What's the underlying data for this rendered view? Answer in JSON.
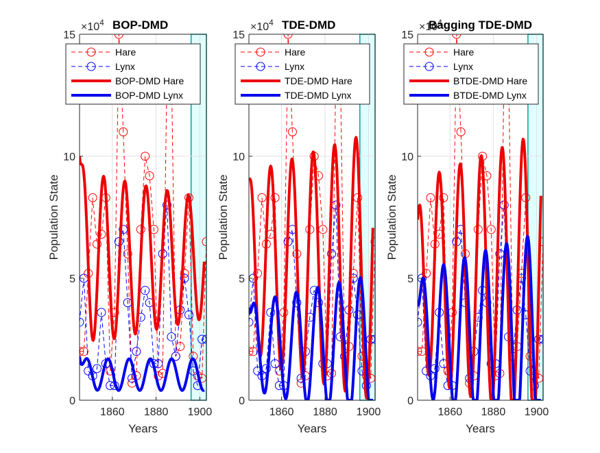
{
  "chart_data": [
    {
      "type": "line",
      "title": "BOP-DMD",
      "xlabel": "Years",
      "ylabel": "Population State",
      "exponent_label": "×10",
      "exponent_power": "4",
      "xlim": [
        1845,
        1903
      ],
      "ylim": [
        0,
        150000
      ],
      "xticks": [
        1860,
        1880,
        1900
      ],
      "yticks": [
        0,
        50000,
        100000,
        150000
      ],
      "ytick_labels": [
        "0",
        "5",
        "10",
        "15"
      ],
      "grid": true,
      "shaded_x": [
        1896,
        1903
      ],
      "legend": [
        "Hare",
        "Lynx",
        "BOP-DMD Hare",
        "BOP-DMD Lynx"
      ],
      "fit_params": {
        "hare": {
          "base": 58000,
          "amp": 36000,
          "amp_slope": -200,
          "period": 9.7,
          "phase": 1856,
          "damp_start": 1845,
          "start_val": 100000
        },
        "lynx": {
          "base": 10500,
          "amp": 6500,
          "amp_slope": 0,
          "period": 9.7,
          "phase": 1858,
          "start_val": 18000
        }
      }
    },
    {
      "type": "line",
      "title": "TDE-DMD",
      "xlabel": "Years",
      "ylabel": "Population State",
      "exponent_label": "×10",
      "exponent_power": "4",
      "xlim": [
        1845,
        1903
      ],
      "ylim": [
        0,
        150000
      ],
      "xticks": [
        1860,
        1880,
        1900
      ],
      "yticks": [
        0,
        50000,
        100000,
        150000
      ],
      "ytick_labels": [
        "0",
        "5",
        "10",
        "15"
      ],
      "grid": true,
      "shaded_x": [
        1896,
        1903
      ],
      "legend": [
        "Hare",
        "Lynx",
        "TDE-DMD Hare",
        "TDE-DMD Lynx"
      ],
      "fit_params": {
        "hare": {
          "base": 55000,
          "amp": 38000,
          "amp_slope": 300,
          "period": 9.8,
          "phase": 1855,
          "start_val": 90000
        },
        "lynx": {
          "base": 22000,
          "amp": 18000,
          "amp_slope": 200,
          "period": 9.8,
          "phase": 1857,
          "start_val": 38000
        }
      }
    },
    {
      "type": "line",
      "title": "Bagging TDE-DMD",
      "xlabel": "Years",
      "ylabel": "Population State",
      "exponent_label": "×10",
      "exponent_power": "4",
      "xlim": [
        1845,
        1903
      ],
      "ylim": [
        0,
        150000
      ],
      "xticks": [
        1860,
        1880,
        1900
      ],
      "yticks": [
        0,
        50000,
        100000,
        150000
      ],
      "ytick_labels": [
        "0",
        "5",
        "10",
        "15"
      ],
      "grid": true,
      "shaded_x": [
        1896,
        1903
      ],
      "legend": [
        "Hare",
        "Lynx",
        "BTDE-DMD Hare",
        "BTDE-DMD Lynx"
      ],
      "fit_params": {
        "hare": {
          "base": 50000,
          "amp": 40000,
          "amp_slope": 350,
          "period": 9.7,
          "phase": 1855,
          "start_val": 74000
        },
        "lynx": {
          "base": 27000,
          "amp": 25000,
          "amp_slope": 300,
          "period": 9.7,
          "phase": 1857,
          "start_val": 40000
        }
      }
    }
  ],
  "observed": {
    "years": [
      1845,
      1847,
      1849,
      1851,
      1853,
      1855,
      1857,
      1859,
      1861,
      1863,
      1865,
      1867,
      1869,
      1871,
      1873,
      1875,
      1877,
      1879,
      1881,
      1883,
      1885,
      1887,
      1889,
      1891,
      1893,
      1895,
      1897,
      1899,
      1901,
      1903
    ],
    "hare": [
      20000,
      20000,
      52000,
      83000,
      64000,
      68000,
      83000,
      12000,
      36000,
      150000,
      110000,
      60000,
      7000,
      10000,
      70000,
      100000,
      92000,
      70000,
      10000,
      11000,
      137000,
      137000,
      18000,
      22000,
      52000,
      83000,
      18000,
      10000,
      9000,
      65000
    ],
    "lynx": [
      32000,
      50000,
      12000,
      10000,
      13000,
      36000,
      15000,
      6000,
      6000,
      65000,
      70000,
      40000,
      9000,
      20000,
      34000,
      45000,
      40000,
      15000,
      15000,
      60000,
      80000,
      26000,
      18000,
      37000,
      50000,
      35000,
      12000,
      6000,
      25000,
      25000
    ]
  }
}
